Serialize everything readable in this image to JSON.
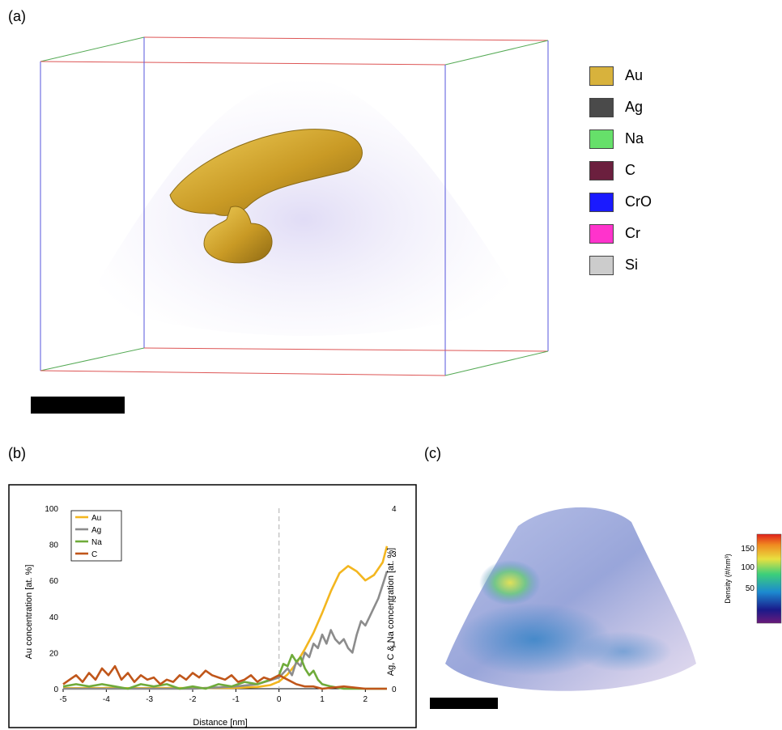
{
  "panels": {
    "a": {
      "label": "(a)"
    },
    "b": {
      "label": "(b)"
    },
    "c": {
      "label": "(c)"
    }
  },
  "legend_a": [
    {
      "label": "Au",
      "color": "#d8b23c"
    },
    {
      "label": "Ag",
      "color": "#4a4a4a"
    },
    {
      "label": "Na",
      "color": "#66e06a"
    },
    {
      "label": "C",
      "color": "#6b1f3e"
    },
    {
      "label": "CrO",
      "color": "#1a1aff"
    },
    {
      "label": "Cr",
      "color": "#ff33cc"
    },
    {
      "label": "Si",
      "color": "#cccccc"
    }
  ],
  "colorbar_c": {
    "label": "Density (#/nm³)",
    "ticks": [
      "150",
      "100",
      "50"
    ]
  },
  "chart_data": {
    "type": "line",
    "xlabel": "Distance [nm]",
    "ylabel": "Au concentration [at. %]",
    "y2label": "Ag, C & Na concentration [at. %]",
    "xlim": [
      -5,
      2.5
    ],
    "ylim": [
      0,
      100
    ],
    "y2lim": [
      0,
      4
    ],
    "xticks": [
      "-5",
      "-4",
      "-3",
      "-2",
      "-1",
      "0",
      "1",
      "2"
    ],
    "yticks": [
      "0",
      "20",
      "40",
      "60",
      "80",
      "100"
    ],
    "y2ticks": [
      "0",
      "1",
      "2",
      "3",
      "4"
    ],
    "vline_x": 0,
    "series": [
      {
        "name": "Au",
        "axis": "left",
        "color": "#f3b61f",
        "x": [
          -5,
          -4.5,
          -4,
          -3.5,
          -3,
          -2.5,
          -2,
          -1.5,
          -1,
          -0.5,
          -0.2,
          0,
          0.2,
          0.4,
          0.6,
          0.8,
          1.0,
          1.2,
          1.4,
          1.6,
          1.8,
          2.0,
          2.2,
          2.4,
          2.5
        ],
        "y": [
          0.3,
          0.3,
          0.4,
          0.3,
          0.3,
          0.4,
          0.3,
          0.4,
          0.5,
          1.0,
          2.0,
          4.0,
          8.0,
          14.0,
          22.0,
          31.0,
          42.0,
          54.0,
          64.0,
          68.0,
          65.0,
          60.0,
          63.0,
          70.0,
          79.0
        ]
      },
      {
        "name": "Ag",
        "axis": "right",
        "color": "#8c8c8c",
        "x": [
          -5,
          -4,
          -3,
          -2,
          -1,
          -0.5,
          0,
          0.1,
          0.2,
          0.3,
          0.4,
          0.5,
          0.6,
          0.7,
          0.8,
          0.9,
          1.0,
          1.1,
          1.2,
          1.3,
          1.4,
          1.5,
          1.6,
          1.7,
          1.8,
          1.9,
          2.0,
          2.1,
          2.2,
          2.3,
          2.4,
          2.5
        ],
        "y": [
          0.0,
          0.0,
          0.0,
          0.0,
          0.05,
          0.1,
          0.25,
          0.35,
          0.45,
          0.3,
          0.6,
          0.5,
          0.8,
          0.7,
          1.0,
          0.9,
          1.2,
          1.0,
          1.3,
          1.1,
          1.0,
          1.1,
          0.9,
          0.8,
          1.2,
          1.5,
          1.4,
          1.6,
          1.8,
          2.0,
          2.3,
          2.6
        ]
      },
      {
        "name": "Na",
        "axis": "right",
        "color": "#6fab3a",
        "x": [
          -5,
          -4.7,
          -4.4,
          -4.1,
          -3.8,
          -3.5,
          -3.2,
          -2.9,
          -2.6,
          -2.3,
          -2.0,
          -1.7,
          -1.4,
          -1.1,
          -0.8,
          -0.5,
          -0.2,
          0,
          0.1,
          0.2,
          0.3,
          0.4,
          0.5,
          0.6,
          0.7,
          0.8,
          0.9,
          1.0,
          1.2,
          1.5,
          2.0,
          2.5
        ],
        "y": [
          0.05,
          0.1,
          0.05,
          0.1,
          0.05,
          0.0,
          0.1,
          0.05,
          0.1,
          0.0,
          0.05,
          0.0,
          0.1,
          0.05,
          0.15,
          0.1,
          0.2,
          0.3,
          0.55,
          0.5,
          0.75,
          0.6,
          0.7,
          0.45,
          0.3,
          0.4,
          0.2,
          0.1,
          0.05,
          0.0,
          0.0,
          0.0
        ]
      },
      {
        "name": "C",
        "axis": "right",
        "color": "#c0561a",
        "x": [
          -5,
          -4.85,
          -4.7,
          -4.55,
          -4.4,
          -4.25,
          -4.1,
          -3.95,
          -3.8,
          -3.65,
          -3.5,
          -3.35,
          -3.2,
          -3.05,
          -2.9,
          -2.75,
          -2.6,
          -2.45,
          -2.3,
          -2.15,
          -2.0,
          -1.85,
          -1.7,
          -1.55,
          -1.4,
          -1.25,
          -1.1,
          -0.95,
          -0.8,
          -0.65,
          -0.5,
          -0.35,
          -0.2,
          0,
          0.2,
          0.4,
          0.6,
          0.8,
          1.0,
          1.5,
          2.0,
          2.5
        ],
        "y": [
          0.1,
          0.2,
          0.3,
          0.15,
          0.35,
          0.2,
          0.45,
          0.3,
          0.5,
          0.2,
          0.35,
          0.15,
          0.3,
          0.2,
          0.25,
          0.1,
          0.2,
          0.15,
          0.3,
          0.2,
          0.35,
          0.25,
          0.4,
          0.3,
          0.25,
          0.2,
          0.3,
          0.15,
          0.2,
          0.3,
          0.15,
          0.25,
          0.2,
          0.3,
          0.2,
          0.1,
          0.05,
          0.05,
          0.0,
          0.05,
          0.0,
          0.0
        ]
      }
    ]
  }
}
